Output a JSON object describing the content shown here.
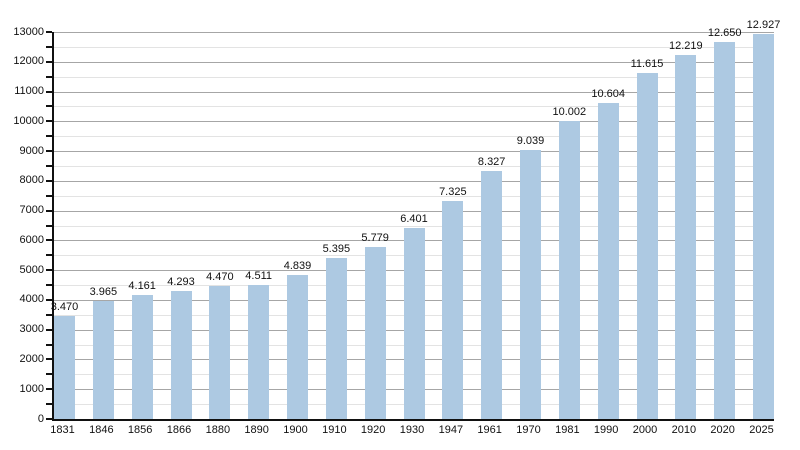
{
  "chart_data": {
    "type": "bar",
    "title": "",
    "xlabel": "",
    "ylabel": "",
    "categories": [
      "1831",
      "1846",
      "1856",
      "1866",
      "1880",
      "1890",
      "1900",
      "1910",
      "1920",
      "1930",
      "1947",
      "1961",
      "1970",
      "1981",
      "1990",
      "2000",
      "2010",
      "2020",
      "2025"
    ],
    "values": [
      3470,
      3965,
      4161,
      4293,
      4470,
      4511,
      4839,
      5395,
      5779,
      6401,
      7325,
      8327,
      9039,
      10002,
      10604,
      11615,
      12219,
      12650,
      12927
    ],
    "bar_labels": [
      "3.470",
      "3.965",
      "4.161",
      "4.293",
      "4.470",
      "4.511",
      "4.839",
      "5.395",
      "5.779",
      "6.401",
      "7.325",
      "8.327",
      "9.039",
      "10.002",
      "10.604",
      "11.615",
      "12.219",
      "12.650",
      "12.927"
    ],
    "ylim": [
      0,
      13000
    ],
    "y_major_step": 1000,
    "y_minor_step": 500,
    "y_tick_labels": [
      "0",
      "1000",
      "2000",
      "3000",
      "4000",
      "5000",
      "6000",
      "7000",
      "8000",
      "9000",
      "10000",
      "11000",
      "12000",
      "13000"
    ],
    "grid": true,
    "legend": false,
    "colors": {
      "bar": "#adc9e2",
      "grid_major": "#a6a6a6",
      "grid_minor": "#e3e3e3",
      "axis": "#111111",
      "text": "#111111",
      "background": "#ffffff"
    }
  }
}
